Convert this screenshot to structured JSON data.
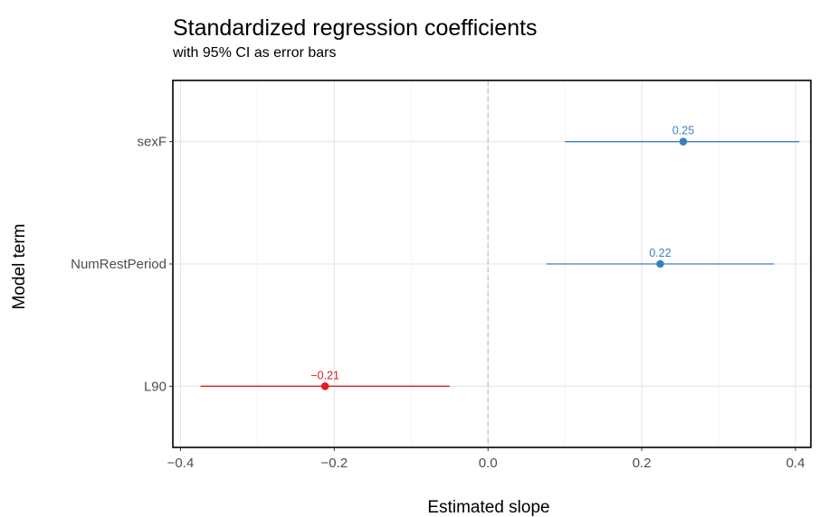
{
  "chart_data": {
    "type": "scatter",
    "title": "Standardized regression coefficients",
    "subtitle": "with 95% CI as error bars",
    "xlabel": "Estimated slope",
    "ylabel": "Model term",
    "xlim": [
      -0.41,
      0.42
    ],
    "x_ticks": [
      -0.4,
      -0.2,
      0.0,
      0.2,
      0.4
    ],
    "x_tick_labels": [
      "−0.4",
      "−0.2",
      "0.0",
      "0.2",
      "0.4"
    ],
    "reference_line": 0,
    "grid": true,
    "categories": [
      "sexF",
      "NumRestPeriod",
      "L90"
    ],
    "points": [
      {
        "term": "sexF",
        "estimate": 0.254,
        "ci_low": 0.1,
        "ci_high": 0.405,
        "label": "0.25",
        "color": "#3a7fbf"
      },
      {
        "term": "NumRestPeriod",
        "estimate": 0.224,
        "ci_low": 0.076,
        "ci_high": 0.372,
        "label": "0.22",
        "color": "#3a7fbf"
      },
      {
        "term": "L90",
        "estimate": -0.212,
        "ci_low": -0.374,
        "ci_high": -0.05,
        "label": "−0.21",
        "color": "#e41a1c"
      }
    ]
  }
}
